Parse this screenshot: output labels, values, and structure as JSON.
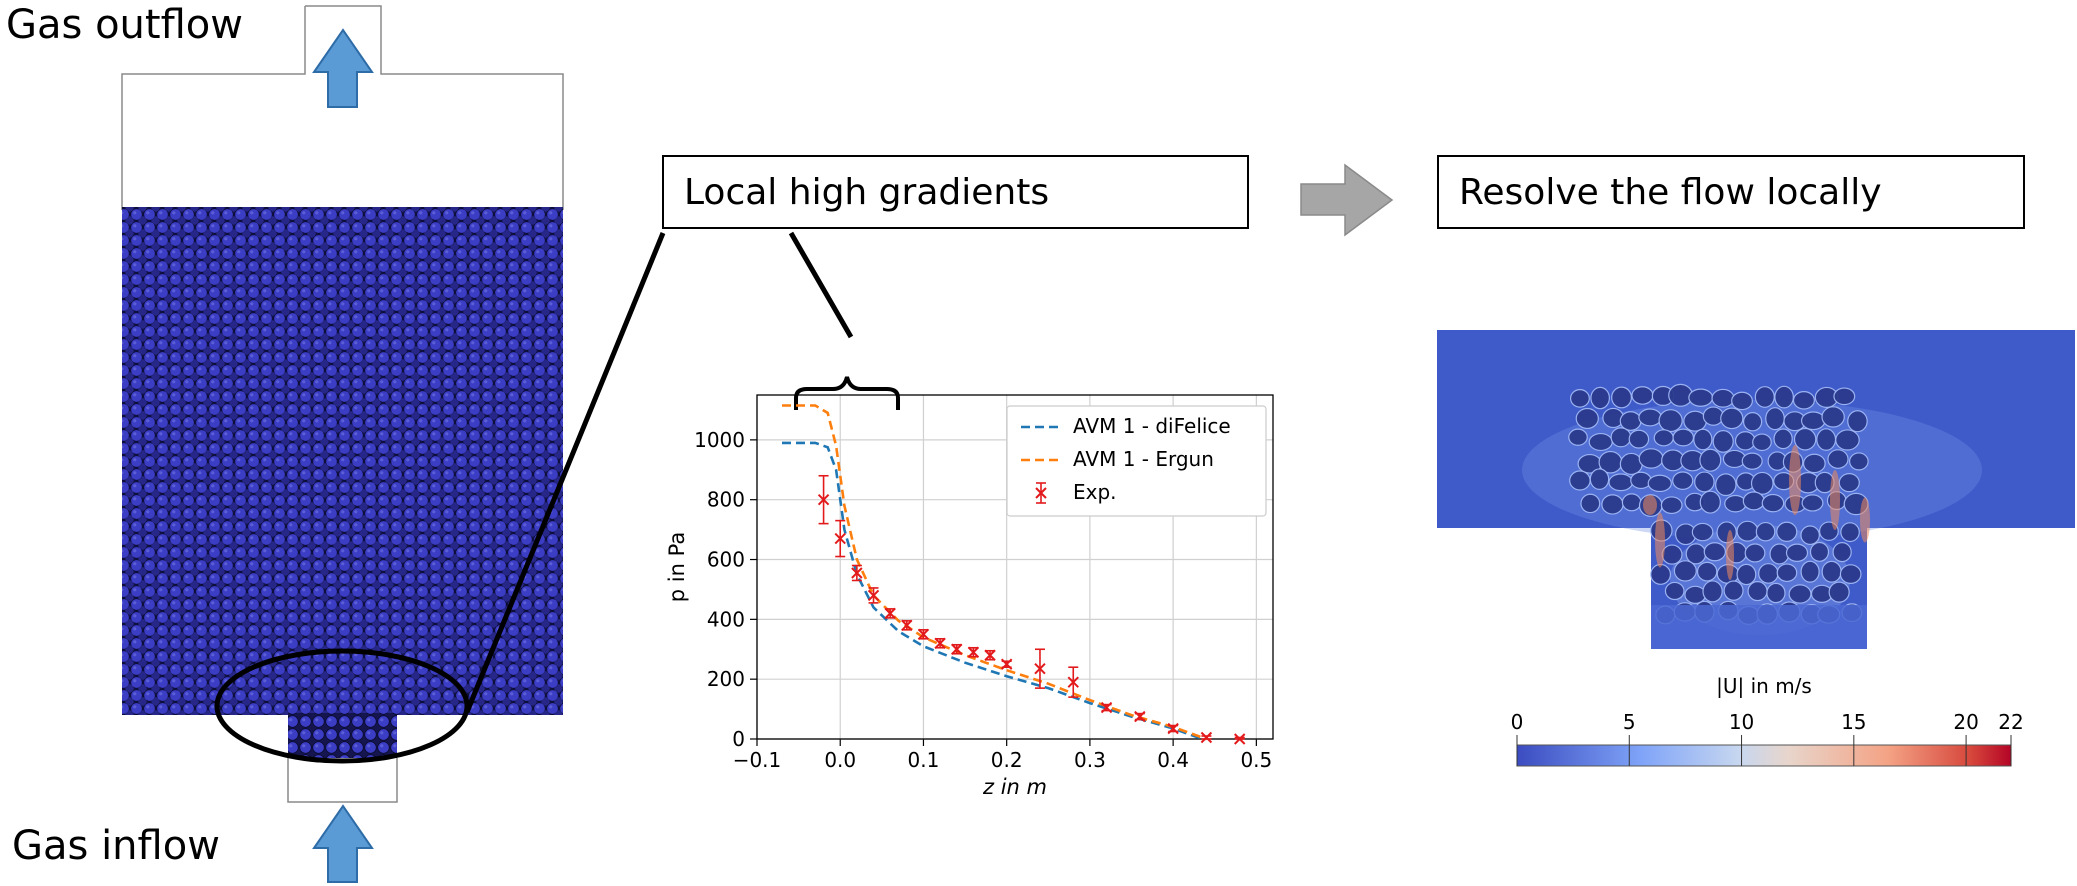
{
  "labels": {
    "gas_outflow": "Gas outflow",
    "gas_inflow": "Gas inflow",
    "local_high_gradients": "Local high gradients",
    "resolve_flow": "Resolve the flow locally"
  },
  "colors": {
    "particle_fill": "#3a3cc0",
    "arrow_blue": "#5b9bd5",
    "arrow_gray": "#a6a6a6",
    "series_difelice": "#1f77b4",
    "series_ergun": "#ff7f0e",
    "series_exp": "#e31a1c"
  },
  "colorbar": {
    "label": "|U| in m/s",
    "ticks": [
      "0",
      "5",
      "10",
      "15",
      "20",
      "22"
    ],
    "tick_values": [
      0,
      5,
      10,
      15,
      20,
      22
    ],
    "min": 0,
    "max": 22
  },
  "chart_data": {
    "type": "line",
    "xlabel": "z in m",
    "ylabel": "p in Pa",
    "xlim": [
      -0.1,
      0.52
    ],
    "ylim": [
      0,
      1150
    ],
    "xticks": [
      -0.1,
      0.0,
      0.1,
      0.2,
      0.3,
      0.4,
      0.5
    ],
    "xtick_labels": [
      "−0.1",
      "0.0",
      "0.1",
      "0.2",
      "0.3",
      "0.4",
      "0.5"
    ],
    "yticks": [
      0,
      200,
      400,
      600,
      800,
      1000
    ],
    "ytick_labels": [
      "0",
      "200",
      "400",
      "600",
      "800",
      "1000"
    ],
    "grid": true,
    "legend_position": "top-right",
    "series": [
      {
        "name": "AVM 1 - diFelice",
        "style": "dashed",
        "x": [
          -0.07,
          -0.03,
          -0.015,
          -0.005,
          0.005,
          0.02,
          0.04,
          0.07,
          0.1,
          0.15,
          0.2,
          0.25,
          0.3,
          0.35,
          0.4,
          0.43,
          0.44
        ],
        "y": [
          990,
          990,
          975,
          900,
          700,
          550,
          440,
          360,
          310,
          255,
          210,
          170,
          120,
          75,
          35,
          5,
          0
        ]
      },
      {
        "name": "AVM 1 - Ergun",
        "style": "dashed",
        "x": [
          -0.07,
          -0.03,
          -0.015,
          -0.005,
          0.005,
          0.02,
          0.04,
          0.07,
          0.1,
          0.15,
          0.2,
          0.25,
          0.3,
          0.35,
          0.4,
          0.43,
          0.44
        ],
        "y": [
          1115,
          1115,
          1090,
          980,
          780,
          600,
          480,
          395,
          340,
          280,
          230,
          185,
          130,
          80,
          40,
          10,
          0
        ]
      },
      {
        "name": "Exp.",
        "style": "markers",
        "x": [
          -0.02,
          0.0,
          0.02,
          0.04,
          0.06,
          0.08,
          0.1,
          0.12,
          0.14,
          0.16,
          0.18,
          0.2,
          0.24,
          0.28,
          0.32,
          0.36,
          0.4,
          0.44,
          0.48
        ],
        "y": [
          800,
          670,
          555,
          480,
          420,
          380,
          350,
          320,
          300,
          290,
          280,
          250,
          235,
          190,
          105,
          75,
          35,
          5,
          0
        ],
        "err": [
          80,
          60,
          25,
          25,
          15,
          15,
          15,
          15,
          15,
          15,
          15,
          10,
          65,
          50,
          10,
          10,
          10,
          5,
          5
        ]
      }
    ]
  }
}
